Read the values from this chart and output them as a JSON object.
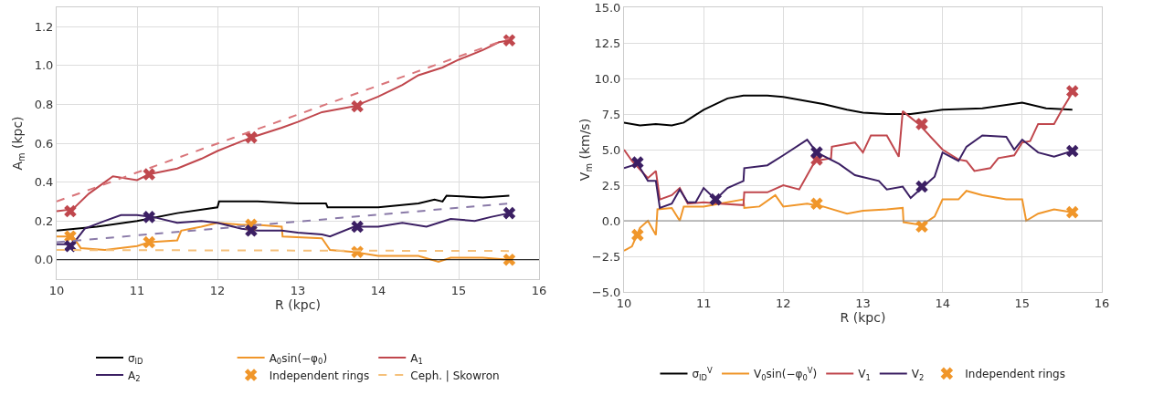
{
  "chart_data": [
    {
      "type": "line",
      "xlabel": "R (kpc)",
      "ylabel": "A$_{m}$ (kpc)",
      "xlim": [
        10,
        16
      ],
      "xticks": [
        10,
        11,
        12,
        13,
        14,
        15,
        16
      ],
      "ylim": [
        -0.1,
        1.3
      ],
      "yticks": [
        {
          "value": 0,
          "label": "0.0"
        },
        {
          "value": 0.2,
          "label": "0.2"
        },
        {
          "value": 0.4,
          "label": "0.4"
        },
        {
          "value": 0.6,
          "label": "0.6"
        },
        {
          "value": 0.8,
          "label": "0.8"
        },
        {
          "value": 1,
          "label": "1.0"
        },
        {
          "value": 1.2,
          "label": "1.2"
        }
      ],
      "grid": true,
      "legend": "bottom",
      "ref_lines": [
        {
          "axis": "y",
          "value": 0,
          "color": "#000000"
        }
      ],
      "series": [
        {
          "name": "σ$_{ID}$",
          "color": "#000000",
          "line_style": "solid",
          "x": [
            10,
            10.5,
            11,
            11.5,
            12,
            12.02,
            12.5,
            13,
            13.35,
            13.37,
            14,
            14.5,
            14.7,
            14.8,
            14.85,
            15.3,
            15.63
          ],
          "values": [
            0.15,
            0.17,
            0.2,
            0.24,
            0.27,
            0.3,
            0.3,
            0.29,
            0.29,
            0.27,
            0.27,
            0.29,
            0.31,
            0.3,
            0.33,
            0.32,
            0.33
          ]
        },
        {
          "name": "A$_{0}$sin(−φ$_{0}$)",
          "color": "#f0962a",
          "line_style": "solid",
          "x": [
            10,
            10.2,
            10.3,
            10.6,
            11,
            11.15,
            11.5,
            11.55,
            11.8,
            12,
            12.3,
            12.5,
            12.8,
            12.81,
            13.3,
            13.4,
            13.7,
            14,
            14.5,
            14.75,
            14.9,
            15.3,
            15.63
          ],
          "values": [
            0.12,
            0.12,
            0.06,
            0.05,
            0.07,
            0.09,
            0.1,
            0.15,
            0.17,
            0.19,
            0.18,
            0.18,
            0.17,
            0.12,
            0.11,
            0.05,
            0.04,
            0.02,
            0.02,
            -0.01,
            0.01,
            0.01,
            0
          ]
        },
        {
          "name": "A$_{1}$",
          "color": "#c0474d",
          "line_style": "solid",
          "x": [
            10,
            10.2,
            10.4,
            10.6,
            10.7,
            11,
            11.15,
            11.5,
            11.8,
            12,
            12.3,
            12.5,
            12.8,
            13,
            13.3,
            13.7,
            14,
            14.3,
            14.5,
            14.8,
            15,
            15.3,
            15.5,
            15.63
          ],
          "values": [
            0.25,
            0.26,
            0.34,
            0.4,
            0.43,
            0.41,
            0.44,
            0.47,
            0.52,
            0.56,
            0.61,
            0.64,
            0.68,
            0.71,
            0.76,
            0.79,
            0.84,
            0.9,
            0.95,
            0.99,
            1.03,
            1.08,
            1.12,
            1.13
          ]
        },
        {
          "name": "A$_{2}$",
          "color": "#3b1f63",
          "line_style": "solid",
          "x": [
            10,
            10.2,
            10.35,
            10.6,
            10.8,
            11,
            11.2,
            11.5,
            11.8,
            12,
            12.3,
            12.5,
            12.8,
            13,
            13.3,
            13.4,
            13.7,
            14,
            14.3,
            14.6,
            14.9,
            15.2,
            15.4,
            15.63
          ],
          "values": [
            0.08,
            0.08,
            0.16,
            0.2,
            0.23,
            0.23,
            0.22,
            0.19,
            0.2,
            0.19,
            0.16,
            0.15,
            0.15,
            0.14,
            0.13,
            0.12,
            0.17,
            0.17,
            0.19,
            0.17,
            0.21,
            0.2,
            0.22,
            0.24
          ]
        },
        {
          "name": "Independent rings",
          "type": "scatter",
          "marker": "cross",
          "color": "#f0962a",
          "x": [
            10.17,
            11.15,
            12.42,
            13.74,
            15.63
          ],
          "values": [
            0.12,
            0.09,
            0.18,
            0.04,
            0
          ]
        },
        {
          "type": "scatter",
          "marker": "cross",
          "color": "#c0474d",
          "x": [
            10.17,
            11.15,
            12.42,
            13.74,
            15.63
          ],
          "values": [
            0.25,
            0.44,
            0.63,
            0.79,
            1.13
          ]
        },
        {
          "type": "scatter",
          "marker": "cross",
          "color": "#3b1f63",
          "x": [
            10.17,
            11.15,
            12.42,
            13.74,
            15.63
          ],
          "values": [
            0.07,
            0.22,
            0.15,
            0.17,
            0.24
          ]
        },
        {
          "name": "Ceph. | Skowron",
          "color": "#f5c07a",
          "line_style": "dashed",
          "x": [
            10,
            15.63
          ],
          "values": [
            0.05,
            0.045
          ]
        },
        {
          "color": "#d9757a",
          "line_style": "dashed",
          "x": [
            10,
            15.63
          ],
          "values": [
            0.3,
            1.14
          ]
        },
        {
          "color": "#8a7aa8",
          "line_style": "dashed",
          "x": [
            10,
            15.63
          ],
          "values": [
            0.09,
            0.29
          ]
        }
      ]
    },
    {
      "type": "line",
      "xlabel": "R (kpc)",
      "ylabel": "V$_{m}$ (km/s)",
      "xlim": [
        10,
        16
      ],
      "xticks": [
        10,
        11,
        12,
        13,
        14,
        15,
        16
      ],
      "ylim": [
        -5,
        15
      ],
      "yticks": [
        {
          "value": -5,
          "label": "−5.0"
        },
        {
          "value": -2.5,
          "label": "−2.5"
        },
        {
          "value": 0,
          "label": "0.0"
        },
        {
          "value": 2.5,
          "label": "2.5"
        },
        {
          "value": 5,
          "label": "5.0"
        },
        {
          "value": 7.5,
          "label": "7.5"
        },
        {
          "value": 10,
          "label": "10.0"
        },
        {
          "value": 12.5,
          "label": "12.5"
        },
        {
          "value": 15,
          "label": "15.0"
        }
      ],
      "grid": true,
      "legend": "bottom",
      "ref_lines": [
        {
          "axis": "y",
          "value": 0,
          "color": "#888888"
        }
      ],
      "series": [
        {
          "name": "σ$_{ID}$$^{V}$",
          "color": "#000000",
          "line_style": "solid",
          "x": [
            10,
            10.2,
            10.4,
            10.6,
            10.75,
            11,
            11.3,
            11.5,
            11.8,
            12,
            12.5,
            12.8,
            13,
            13.3,
            13.6,
            14,
            14.5,
            15,
            15.3,
            15.63
          ],
          "values": [
            6.9,
            6.7,
            6.8,
            6.7,
            6.9,
            7.8,
            8.6,
            8.8,
            8.8,
            8.7,
            8.2,
            7.8,
            7.6,
            7.5,
            7.5,
            7.8,
            7.9,
            8.3,
            7.9,
            7.8
          ]
        },
        {
          "name": "V$_{0}$sin(−φ$_{0}$$^{V}$)",
          "color": "#f0962a",
          "line_style": "solid",
          "x": [
            10,
            10.1,
            10.2,
            10.3,
            10.4,
            10.42,
            10.6,
            10.7,
            10.75,
            11,
            11.2,
            11.5,
            11.51,
            11.7,
            11.9,
            12,
            12.3,
            12.5,
            12.8,
            13,
            13.3,
            13.5,
            13.51,
            13.74,
            13.9,
            14,
            14.2,
            14.3,
            14.5,
            14.8,
            15,
            15.05,
            15.2,
            15.4,
            15.63
          ],
          "values": [
            -2.1,
            -1.8,
            -0.5,
            0,
            -1,
            0.8,
            0.9,
            0,
            1,
            1,
            1.2,
            1.5,
            0.9,
            1,
            1.8,
            1,
            1.2,
            1,
            0.5,
            0.7,
            0.8,
            0.9,
            -0.1,
            -0.3,
            0.3,
            1.5,
            1.5,
            2.1,
            1.8,
            1.5,
            1.5,
            0,
            0.5,
            0.8,
            0.6
          ]
        },
        {
          "name": "V$_{1}$",
          "color": "#c0474d",
          "line_style": "solid",
          "x": [
            10,
            10.1,
            10.3,
            10.4,
            10.45,
            10.6,
            10.7,
            10.8,
            11,
            11.2,
            11.5,
            11.51,
            11.8,
            12,
            12.2,
            12.4,
            12.6,
            12.61,
            12.9,
            13,
            13.1,
            13.3,
            13.45,
            13.5,
            13.7,
            14,
            14.2,
            14.3,
            14.4,
            14.6,
            14.7,
            14.9,
            15,
            15.1,
            15.2,
            15.4,
            15.5,
            15.63
          ],
          "values": [
            5,
            4.2,
            3,
            3.5,
            1.5,
            1.8,
            2.3,
            1.2,
            1.3,
            1.2,
            1.1,
            2,
            2,
            2.5,
            2.2,
            4.2,
            4.4,
            5.2,
            5.5,
            4.8,
            6,
            6,
            4.5,
            7.7,
            6.8,
            5,
            4.3,
            4.2,
            3.5,
            3.7,
            4.4,
            4.6,
            5.5,
            5.6,
            6.8,
            6.8,
            7.8,
            9
          ]
        },
        {
          "name": "V$_{2}$",
          "color": "#3b1f63",
          "line_style": "solid",
          "x": [
            10,
            10.17,
            10.3,
            10.4,
            10.45,
            10.6,
            10.7,
            10.8,
            10.9,
            11,
            11.15,
            11.3,
            11.5,
            11.51,
            11.8,
            12,
            12.3,
            12.42,
            12.7,
            12.9,
            13.2,
            13.3,
            13.5,
            13.6,
            13.74,
            13.9,
            14,
            14.2,
            14.3,
            14.5,
            14.8,
            14.9,
            15,
            15.2,
            15.4,
            15.63
          ],
          "values": [
            3.7,
            4,
            2.8,
            2.8,
            0.9,
            1.2,
            2.2,
            1.3,
            1.3,
            2.3,
            1.5,
            2.3,
            2.8,
            3.7,
            3.9,
            4.6,
            5.7,
            4.8,
            4,
            3.2,
            2.8,
            2.2,
            2.4,
            1.6,
            2.3,
            3.1,
            4.8,
            4.2,
            5.2,
            6,
            5.9,
            5,
            5.7,
            4.8,
            4.5,
            4.9
          ]
        },
        {
          "name": "Independent rings",
          "type": "scatter",
          "marker": "cross",
          "color": "#f0962a",
          "x": [
            10.17,
            12.42,
            13.74,
            15.63
          ],
          "values": [
            -1,
            1.2,
            -0.4,
            0.6
          ]
        },
        {
          "type": "scatter",
          "marker": "cross",
          "color": "#c0474d",
          "x": [
            12.42,
            13.74,
            15.63
          ],
          "values": [
            4.3,
            6.8,
            9.1
          ]
        },
        {
          "type": "scatter",
          "marker": "cross",
          "color": "#3b1f63",
          "x": [
            10.17,
            11.15,
            12.42,
            13.74,
            15.63
          ],
          "values": [
            4.1,
            1.5,
            4.8,
            2.4,
            4.9
          ]
        }
      ]
    }
  ]
}
